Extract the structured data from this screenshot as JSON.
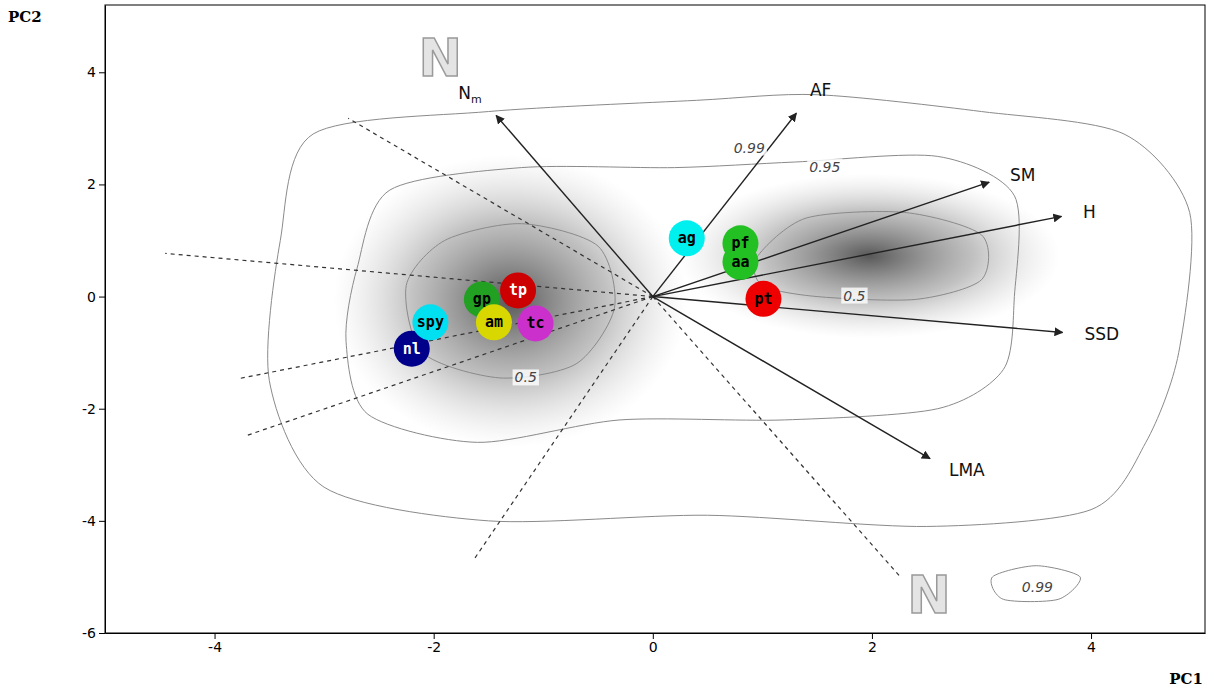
{
  "chart_data": {
    "type": "scatter",
    "x_label": "PC1",
    "y_label": "PC2",
    "xlim": [
      -5,
      5.04
    ],
    "ylim": [
      -6,
      5.2
    ],
    "xticks": [
      -4,
      -2,
      0,
      2,
      4
    ],
    "yticks": [
      -6,
      -4,
      -2,
      0,
      2,
      4
    ],
    "grid": false,
    "origin": [
      0,
      0
    ],
    "points": {
      "labels": [
        "nl",
        "spy",
        "gp",
        "am",
        "tp",
        "tc",
        "ag",
        "aa",
        "pf",
        "pt"
      ],
      "x": [
        -2.2,
        -2.03,
        -1.56,
        -1.45,
        -1.23,
        -1.07,
        0.31,
        0.8,
        0.8,
        1.01
      ],
      "y": [
        -0.93,
        -0.46,
        -0.05,
        -0.46,
        0.11,
        -0.48,
        1.04,
        0.62,
        0.95,
        -0.04
      ],
      "colors": [
        "#00008b",
        "#00e0f0",
        "#22a022",
        "#d8d800",
        "#cc0000",
        "#cc30cc",
        "#00f0f0",
        "#22c022",
        "#22c022",
        "#ee0000"
      ]
    },
    "arrows": [
      {
        "label": "N",
        "subscript": "m",
        "x": -1.43,
        "y": 3.23
      },
      {
        "label": "AF",
        "x": 1.31,
        "y": 3.27
      },
      {
        "label": "SM",
        "x": 3.07,
        "y": 2.04
      },
      {
        "label": "H",
        "x": 3.73,
        "y": 1.43
      },
      {
        "label": "SSD",
        "x": 3.74,
        "y": -0.64
      },
      {
        "label": "LMA",
        "x": 2.53,
        "y": -2.89
      }
    ],
    "dashed_lines": {
      "x": [
        -2.78,
        -4.45,
        -3.77,
        -3.71,
        -1.64,
        2.25
      ],
      "y": [
        3.18,
        0.77,
        -1.46,
        -2.48,
        -4.71,
        -4.98
      ]
    },
    "contours": [
      {
        "level": 0.99,
        "polygons": [
          [
            [
              -3.4,
              1.0
            ],
            [
              -3.1,
              2.9
            ],
            [
              -1.5,
              3.3
            ],
            [
              0.4,
              3.5
            ],
            [
              1.5,
              3.6
            ],
            [
              3.0,
              3.3
            ],
            [
              4.3,
              2.9
            ],
            [
              4.9,
              1.5
            ],
            [
              4.8,
              -1.0
            ],
            [
              4.5,
              -2.6
            ],
            [
              4.0,
              -3.8
            ],
            [
              2.5,
              -4.1
            ],
            [
              0.5,
              -3.9
            ],
            [
              -1.5,
              -4.0
            ],
            [
              -3.0,
              -3.4
            ],
            [
              -3.5,
              -1.5
            ]
          ],
          [
            [
              3.1,
              -5.0
            ],
            [
              3.5,
              -4.8
            ],
            [
              3.9,
              -5.0
            ],
            [
              3.7,
              -5.4
            ],
            [
              3.2,
              -5.4
            ]
          ]
        ],
        "label_positions": [
          [
            0.88,
            2.64
          ],
          [
            3.51,
            -5.2
          ]
        ]
      },
      {
        "level": 0.95,
        "polygons": [
          [
            [
              -2.7,
              0.5
            ],
            [
              -2.4,
              1.9
            ],
            [
              -1.2,
              2.3
            ],
            [
              0.2,
              2.3
            ],
            [
              1.3,
              2.4
            ],
            [
              2.6,
              2.5
            ],
            [
              3.3,
              1.8
            ],
            [
              3.3,
              0.0
            ],
            [
              3.2,
              -1.3
            ],
            [
              2.6,
              -2.0
            ],
            [
              1.2,
              -2.2
            ],
            [
              -0.3,
              -2.2
            ],
            [
              -1.6,
              -2.6
            ],
            [
              -2.6,
              -2.1
            ],
            [
              -2.8,
              -0.8
            ]
          ]
        ],
        "label_positions": [
          [
            1.57,
            2.3
          ]
        ]
      },
      {
        "level": 0.5,
        "polygons": [
          [
            [
              -2.25,
              0.2
            ],
            [
              -1.9,
              1.0
            ],
            [
              -1.2,
              1.3
            ],
            [
              -0.5,
              0.9
            ],
            [
              -0.35,
              -0.2
            ],
            [
              -0.7,
              -1.2
            ],
            [
              -1.4,
              -1.45
            ],
            [
              -2.1,
              -1.0
            ]
          ],
          [
            [
              0.95,
              0.7
            ],
            [
              1.4,
              1.4
            ],
            [
              2.3,
              1.5
            ],
            [
              3.0,
              1.1
            ],
            [
              3.0,
              0.3
            ],
            [
              2.4,
              -0.05
            ],
            [
              1.5,
              0.0
            ],
            [
              1.0,
              0.2
            ]
          ]
        ],
        "label_positions": [
          [
            1.84,
            0.0
          ],
          [
            -1.16,
            -1.46
          ]
        ]
      }
    ],
    "annotations": [
      {
        "text": "N",
        "x": -1.94,
        "y": 4.18
      },
      {
        "text": "N",
        "x": 2.52,
        "y": -5.39
      }
    ]
  }
}
